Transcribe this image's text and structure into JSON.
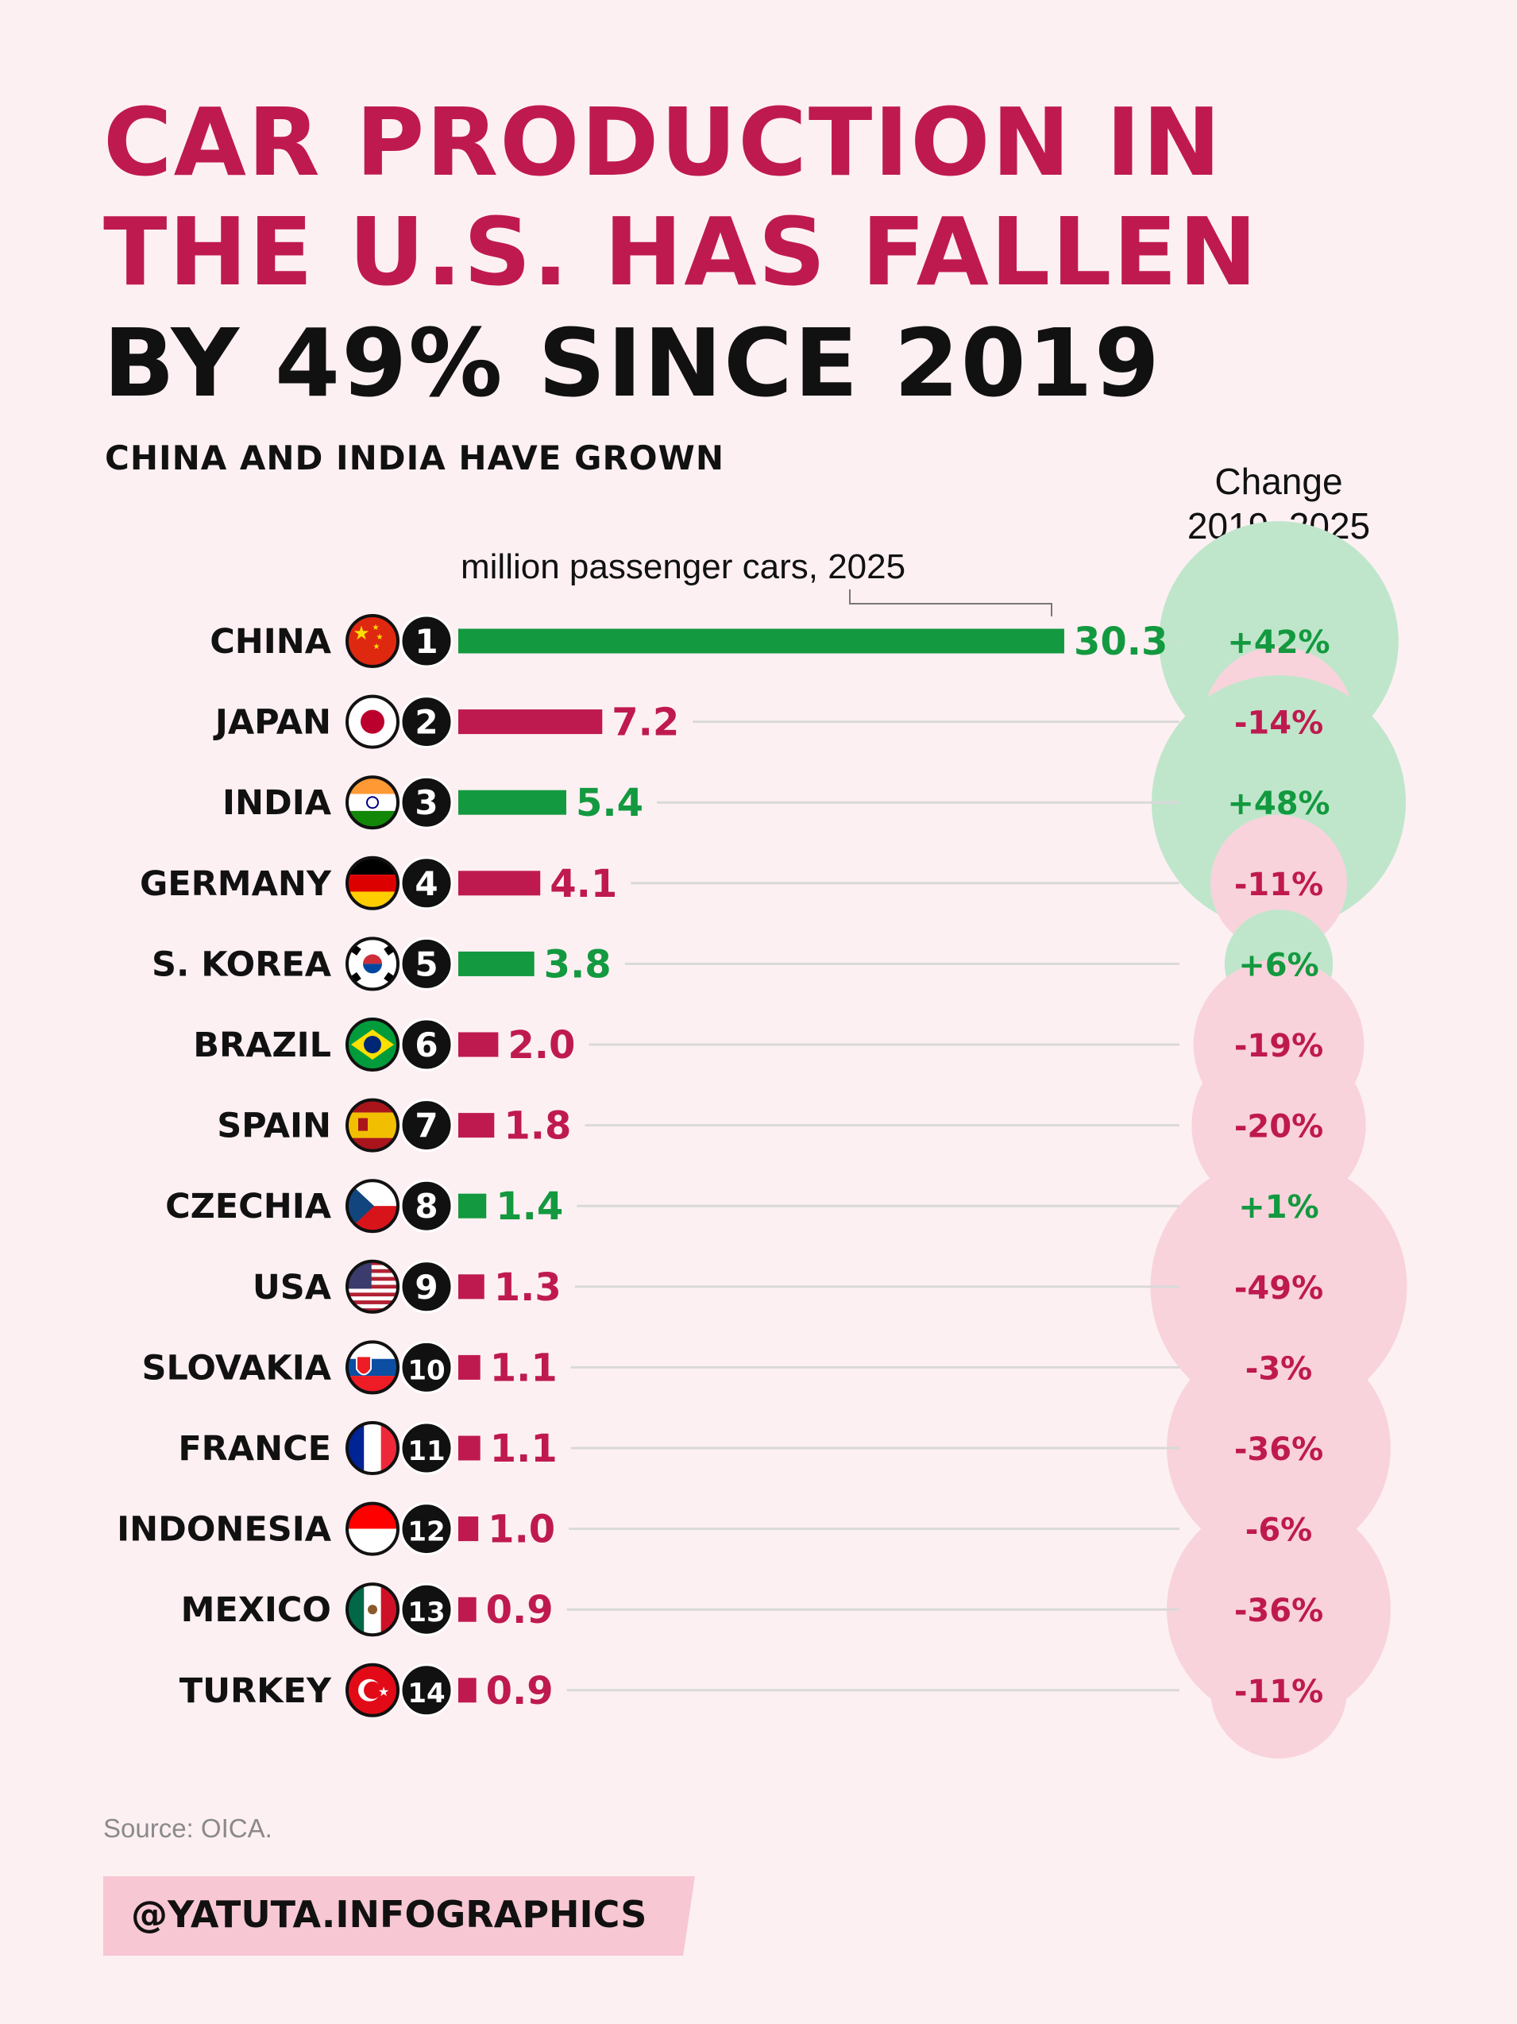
{
  "title": {
    "line1": "CAR PRODUCTION IN",
    "line2": "THE U.S. HAS FALLEN",
    "line3": "BY 49% SINCE 2019"
  },
  "subtitle": "CHINA AND INDIA HAVE GROWN",
  "change_header": {
    "line1": "Change",
    "line2": "2019–2025"
  },
  "source": "Source: OICA.",
  "handle": "@YATUTA.INFOGRAPHICS",
  "colors": {
    "growth": "#13993f",
    "decline": "#bf1a4f",
    "growth_bubble": "#bfe6cb",
    "decline_bubble": "#f8d3dc",
    "background": "#fdf0f3"
  },
  "chart_data": {
    "type": "bar",
    "orientation": "horizontal",
    "value_label": "million passenger cars, 2025",
    "change_label": "Change 2019–2025",
    "categories": [
      "CHINA",
      "JAPAN",
      "INDIA",
      "GERMANY",
      "S. KOREA",
      "BRAZIL",
      "SPAIN",
      "CZECHIA",
      "USA",
      "SLOVAKIA",
      "FRANCE",
      "INDONESIA",
      "MEXICO",
      "TURKEY"
    ],
    "ranks": [
      1,
      2,
      3,
      4,
      5,
      6,
      7,
      8,
      9,
      10,
      11,
      12,
      13,
      14
    ],
    "values": [
      30.3,
      7.2,
      5.4,
      4.1,
      3.8,
      2.0,
      1.8,
      1.4,
      1.3,
      1.1,
      1.1,
      1.0,
      0.9,
      0.9
    ],
    "value_labels": [
      "30.3",
      "7.2",
      "5.4",
      "4.1",
      "3.8",
      "2.0",
      "1.8",
      "1.4",
      "1.3",
      "1.1",
      "1.1",
      "1.0",
      "0.9",
      "0.9"
    ],
    "change_pct": [
      42,
      -14,
      48,
      -11,
      6,
      -19,
      -20,
      1,
      -49,
      -3,
      -36,
      -6,
      -36,
      -11
    ],
    "change_labels": [
      "+42%",
      "-14%",
      "+48%",
      "-11%",
      "+6%",
      "-19%",
      "-20%",
      "+1%",
      "-49%",
      "-3%",
      "-36%",
      "-6%",
      "-36%",
      "-11%"
    ],
    "flags": [
      "china-flag",
      "japan-flag",
      "india-flag",
      "germany-flag",
      "south-korea-flag",
      "brazil-flag",
      "spain-flag",
      "czechia-flag",
      "usa-flag",
      "slovakia-flag",
      "france-flag",
      "indonesia-flag",
      "mexico-flag",
      "turkey-flag"
    ]
  }
}
